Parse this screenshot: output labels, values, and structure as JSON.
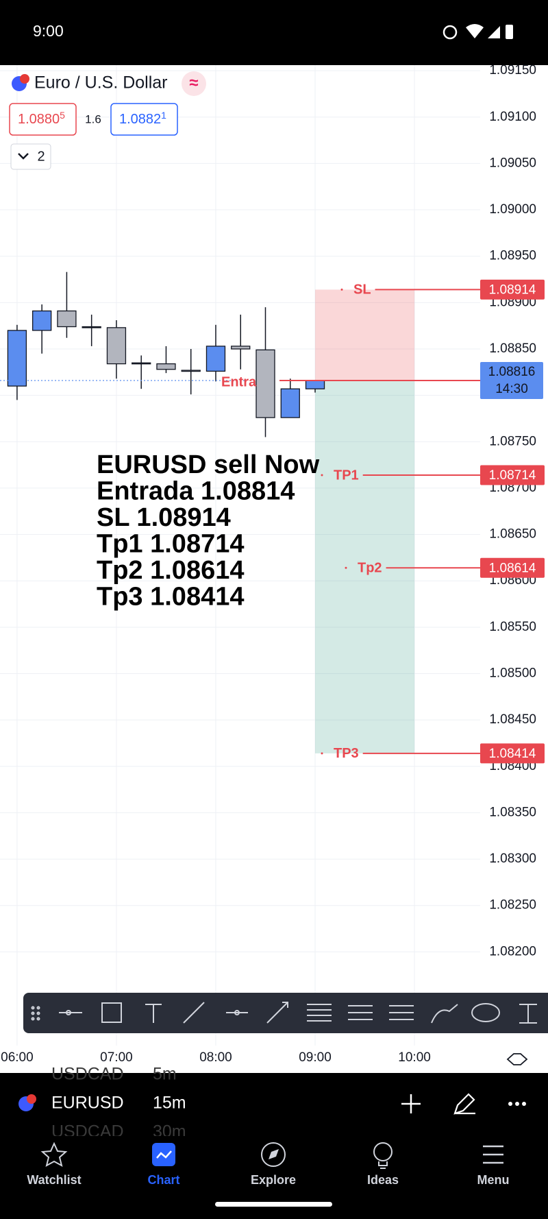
{
  "status_bar": {
    "time": "9:00"
  },
  "header": {
    "symbol_name": "Euro / U.S. Dollar",
    "bid": {
      "price": "1.0880",
      "pip": "5"
    },
    "spread": "1.6",
    "ask": {
      "price": "1.0882",
      "pip": "1"
    },
    "indicators_count": "2"
  },
  "chart_data": {
    "type": "candlestick",
    "candles": [
      {
        "open": 1.0881,
        "high": 1.08876,
        "low": 1.08795,
        "close": 1.0887
      },
      {
        "open": 1.0887,
        "high": 1.08898,
        "low": 1.08845,
        "close": 1.08891
      },
      {
        "open": 1.08891,
        "high": 1.08933,
        "low": 1.08862,
        "close": 1.08874
      },
      {
        "open": 1.08874,
        "high": 1.08887,
        "low": 1.08853,
        "close": 1.08874
      },
      {
        "open": 1.08873,
        "high": 1.08881,
        "low": 1.08818,
        "close": 1.08834
      },
      {
        "open": 1.08835,
        "high": 1.08843,
        "low": 1.08807,
        "close": 1.08835
      },
      {
        "open": 1.08834,
        "high": 1.08853,
        "low": 1.08824,
        "close": 1.08828
      },
      {
        "open": 1.08827,
        "high": 1.0885,
        "low": 1.08801,
        "close": 1.08826
      },
      {
        "open": 1.08826,
        "high": 1.08876,
        "low": 1.08815,
        "close": 1.08853
      },
      {
        "open": 1.08853,
        "high": 1.08887,
        "low": 1.08828,
        "close": 1.0885
      },
      {
        "open": 1.08849,
        "high": 1.08895,
        "low": 1.08755,
        "close": 1.08776
      },
      {
        "open": 1.08776,
        "high": 1.08818,
        "low": 1.08776,
        "close": 1.08807
      },
      {
        "open": 1.08807,
        "high": 1.08816,
        "low": 1.08803,
        "close": 1.08816
      }
    ],
    "up_color": "#5b8def",
    "down_color": "#b2b5be",
    "grid": true,
    "xtick_labels": [
      "06:00",
      "07:00",
      "08:00",
      "09:00",
      "10:00"
    ],
    "ylim": [
      1.08099,
      1.09156
    ],
    "yticks": [
      {
        "value": 1.0915,
        "label": "1.09150"
      },
      {
        "value": 1.091,
        "label": "1.09100"
      },
      {
        "value": 1.0905,
        "label": "1.09050"
      },
      {
        "value": 1.09,
        "label": "1.09000"
      },
      {
        "value": 1.0895,
        "label": "1.08950"
      },
      {
        "value": 1.089,
        "label": "1.08900"
      },
      {
        "value": 1.0885,
        "label": "1.08850"
      },
      {
        "value": 1.088,
        "label": "1.08800"
      },
      {
        "value": 1.0875,
        "label": "1.08750"
      },
      {
        "value": 1.087,
        "label": "1.08700"
      },
      {
        "value": 1.0865,
        "label": "1.08650"
      },
      {
        "value": 1.086,
        "label": "1.08600"
      },
      {
        "value": 1.0855,
        "label": "1.08550"
      },
      {
        "value": 1.085,
        "label": "1.08500"
      },
      {
        "value": 1.0845,
        "label": "1.08450"
      },
      {
        "value": 1.084,
        "label": "1.08400"
      },
      {
        "value": 1.0835,
        "label": "1.08350"
      },
      {
        "value": 1.083,
        "label": "1.08300"
      },
      {
        "value": 1.0825,
        "label": "1.08250"
      },
      {
        "value": 1.082,
        "label": "1.08200"
      }
    ],
    "last_price": 1.08816,
    "last_price_color": "#5b8def",
    "countdown": "14:30",
    "position": {
      "entry_label": "Entra",
      "color": "#e8474f",
      "levels": [
        {
          "label": "SL",
          "value": 1.08914
        },
        {
          "label": "TP1",
          "value": 1.08714
        },
        {
          "label": "Tp2",
          "value": 1.08614
        },
        {
          "label": "TP3",
          "value": 1.08414
        }
      ]
    },
    "annotation": [
      "EURUSD sell Now",
      "Entrada 1.08814",
      "SL 1.08914",
      "Tp1 1.08714",
      "Tp2 1.08614",
      "Tp3 1.08414"
    ]
  },
  "symbol_bar": {
    "symbol": "EURUSD",
    "interval": "15m",
    "prev": {
      "symbol": "USDCAD",
      "interval": "5m"
    },
    "next": {
      "symbol": "USDCAD",
      "interval": "30m"
    }
  },
  "nav": [
    {
      "label": "Watchlist"
    },
    {
      "label": "Chart"
    },
    {
      "label": "Explore"
    },
    {
      "label": "Ideas"
    },
    {
      "label": "Menu"
    }
  ]
}
